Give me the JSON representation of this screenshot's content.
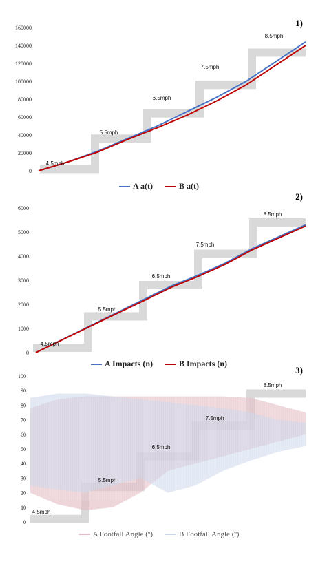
{
  "chart_data": [
    {
      "type": "line",
      "panel_label": "1)",
      "ylim": [
        0,
        160000
      ],
      "yticks": [
        "0",
        "20000",
        "40000",
        "60000",
        "80000",
        "100000",
        "120000",
        "140000",
        "160000"
      ],
      "stage_labels": [
        "4.5mph",
        "5.5mph",
        "6.5mph",
        "7.5mph",
        "8.5mph"
      ],
      "stage_levels": [
        0,
        20000,
        38000,
        56000,
        76000,
        96000,
        114000,
        136000
      ],
      "series": [
        {
          "name": "A a(t)",
          "color": "#4472c4",
          "values": [
            0,
            10000,
            22000,
            36000,
            50000,
            66000,
            82000,
            100000,
            122000,
            144000
          ]
        },
        {
          "name": "B a(t)",
          "color": "#c00000",
          "values": [
            0,
            10000,
            21000,
            35000,
            48000,
            62000,
            78000,
            96000,
            118000,
            140000
          ]
        }
      ]
    },
    {
      "type": "line",
      "panel_label": "2)",
      "ylim": [
        0,
        6000
      ],
      "yticks": [
        "0",
        "1000",
        "2000",
        "3000",
        "4000",
        "5000",
        "6000"
      ],
      "stage_labels": [
        "4.5mph",
        "5.5mph",
        "6.5mph",
        "7.5mph",
        "8.5mph"
      ],
      "series": [
        {
          "name": "A Impacts (n)",
          "color": "#4472c4",
          "values": [
            0,
            550,
            1100,
            1650,
            2200,
            2750,
            3200,
            3700,
            4300,
            4800,
            5300
          ]
        },
        {
          "name": "B Impacts (n)",
          "color": "#c00000",
          "values": [
            0,
            540,
            1080,
            1620,
            2150,
            2700,
            3150,
            3650,
            4250,
            4750,
            5250
          ]
        }
      ]
    },
    {
      "type": "area",
      "panel_label": "3)",
      "ylim": [
        0,
        100
      ],
      "yticks": [
        "0",
        "10",
        "20",
        "30",
        "40",
        "50",
        "60",
        "70",
        "80",
        "90",
        "100"
      ],
      "stage_labels": [
        "4.5mph",
        "5.5mph",
        "6.5mph",
        "7.5mph",
        "8.5mph"
      ],
      "stage_levels": [
        2,
        24,
        45,
        66,
        88
      ],
      "series": [
        {
          "name": "A Footfall Angle (º)",
          "color": "#e3b9c2",
          "low": [
            20,
            12,
            8,
            10,
            20,
            35,
            40,
            45,
            50,
            55,
            60
          ],
          "high": [
            78,
            84,
            86,
            86,
            86,
            86,
            86,
            86,
            85,
            80,
            75
          ]
        },
        {
          "name": "B Footfall Angle (º)",
          "color": "#c9d6ea",
          "low": [
            25,
            22,
            20,
            25,
            30,
            20,
            25,
            35,
            42,
            48,
            52
          ],
          "high": [
            85,
            88,
            88,
            86,
            84,
            82,
            80,
            78,
            75,
            70,
            68
          ]
        }
      ]
    }
  ]
}
